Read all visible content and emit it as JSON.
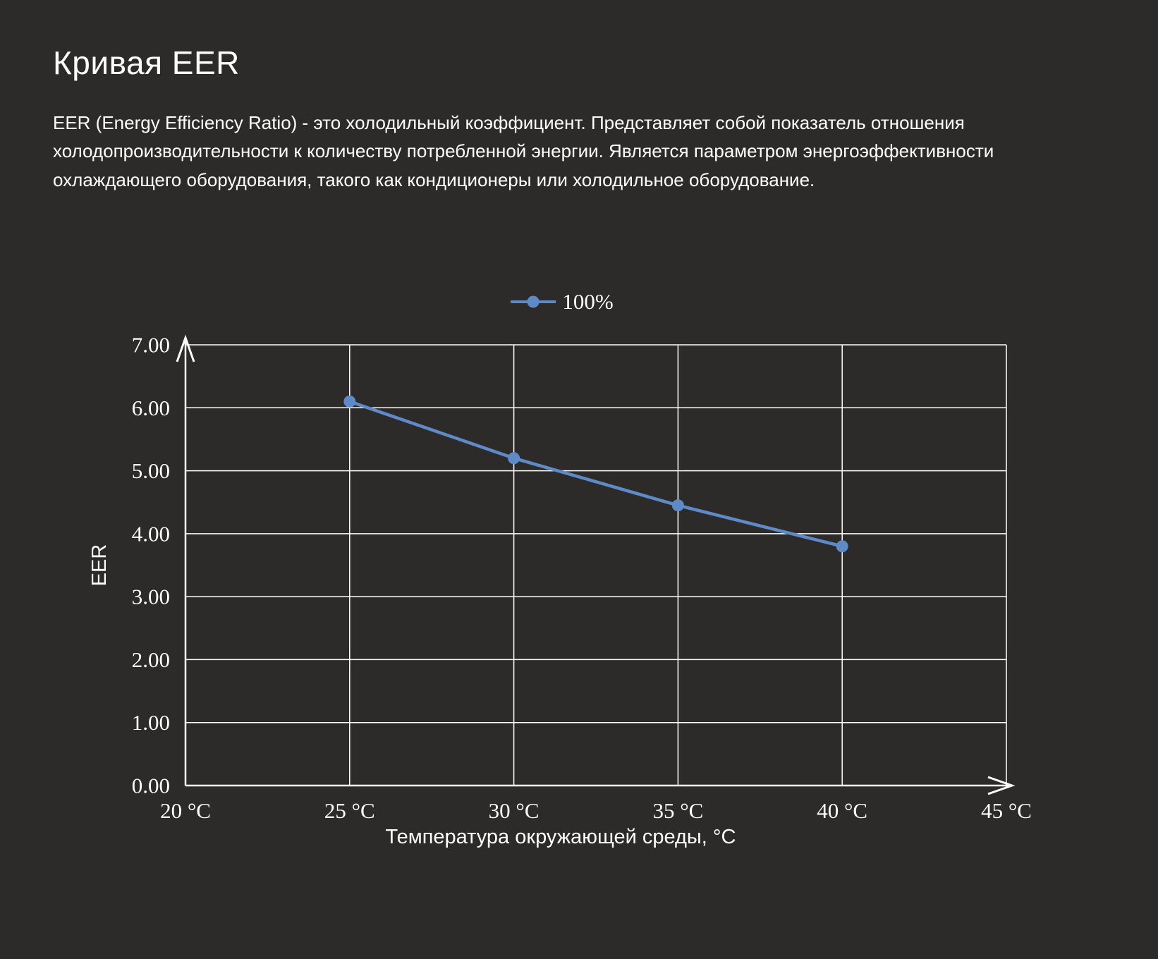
{
  "page": {
    "title": "Кривая EER",
    "description": "EER (Energy Efficiency Ratio) - это холодильный коэффициент. Представляет собой показатель отношения холодопроизводительности к количеству потребленной энергии. Является параметром энергоэффективности охлаждающего оборудования, такого как кондиционеры или холодильное оборудование."
  },
  "colors": {
    "background": "#2d2b2a",
    "text": "#ffffff",
    "grid": "#ffffff",
    "series": "#5e8bc7"
  },
  "chart_data": {
    "type": "line",
    "title": "Кривая EER",
    "xlabel": "Температура окружающей среды, °C",
    "ylabel": "EER",
    "xlim": [
      20,
      45
    ],
    "ylim": [
      0,
      7
    ],
    "y_tick_step": 1,
    "y_tick_labels": [
      "0.00",
      "1.00",
      "2.00",
      "3.00",
      "4.00",
      "5.00",
      "6.00",
      "7.00"
    ],
    "x_ticks": [
      20,
      25,
      30,
      35,
      40,
      45
    ],
    "x_tick_labels": [
      "20 °C",
      "25 °C",
      "30 °C",
      "35 °C",
      "40 °C",
      "45 °C"
    ],
    "grid": true,
    "legend_position": "top-center",
    "series": [
      {
        "name": "100%",
        "x": [
          25,
          30,
          35,
          40
        ],
        "values": [
          6.1,
          5.2,
          4.45,
          3.8
        ]
      }
    ]
  }
}
